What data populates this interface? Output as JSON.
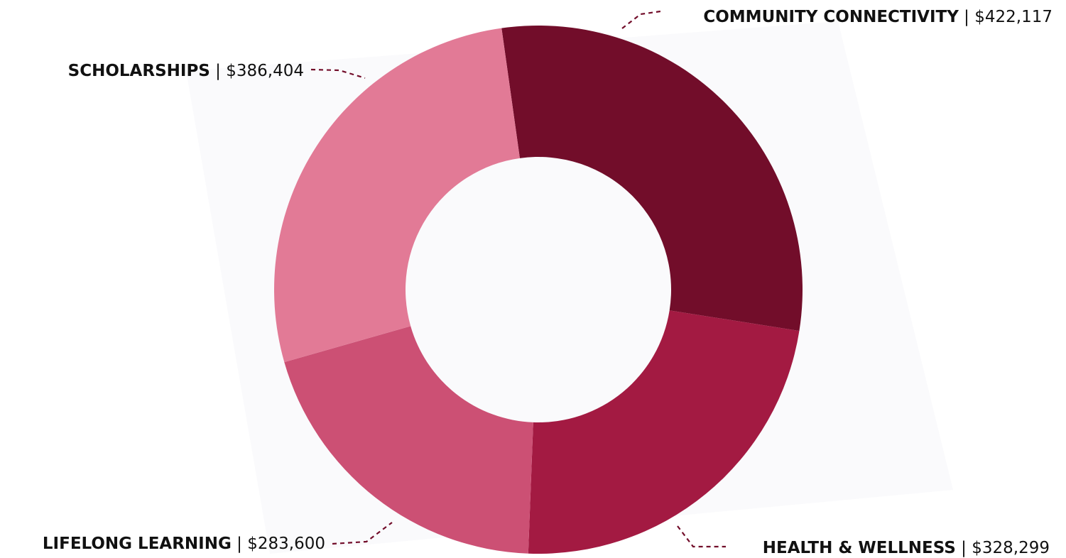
{
  "chart_data": {
    "type": "pie",
    "variant": "donut",
    "title": "",
    "categories": [
      "COMMUNITY CONNECTIVITY",
      "HEALTH & WELLNESS",
      "LIFELONG LEARNING",
      "SCHOLARSHIPS"
    ],
    "values": [
      422117,
      328299,
      283600,
      386404
    ],
    "value_labels": [
      "$422,117",
      "$328,299",
      "$283,600",
      "$386,404"
    ],
    "separator": "|",
    "colors": [
      "#720d2a",
      "#a31a42",
      "#cc5074",
      "#e27a96"
    ],
    "leader_color": "#720d2a",
    "legend": "none"
  }
}
